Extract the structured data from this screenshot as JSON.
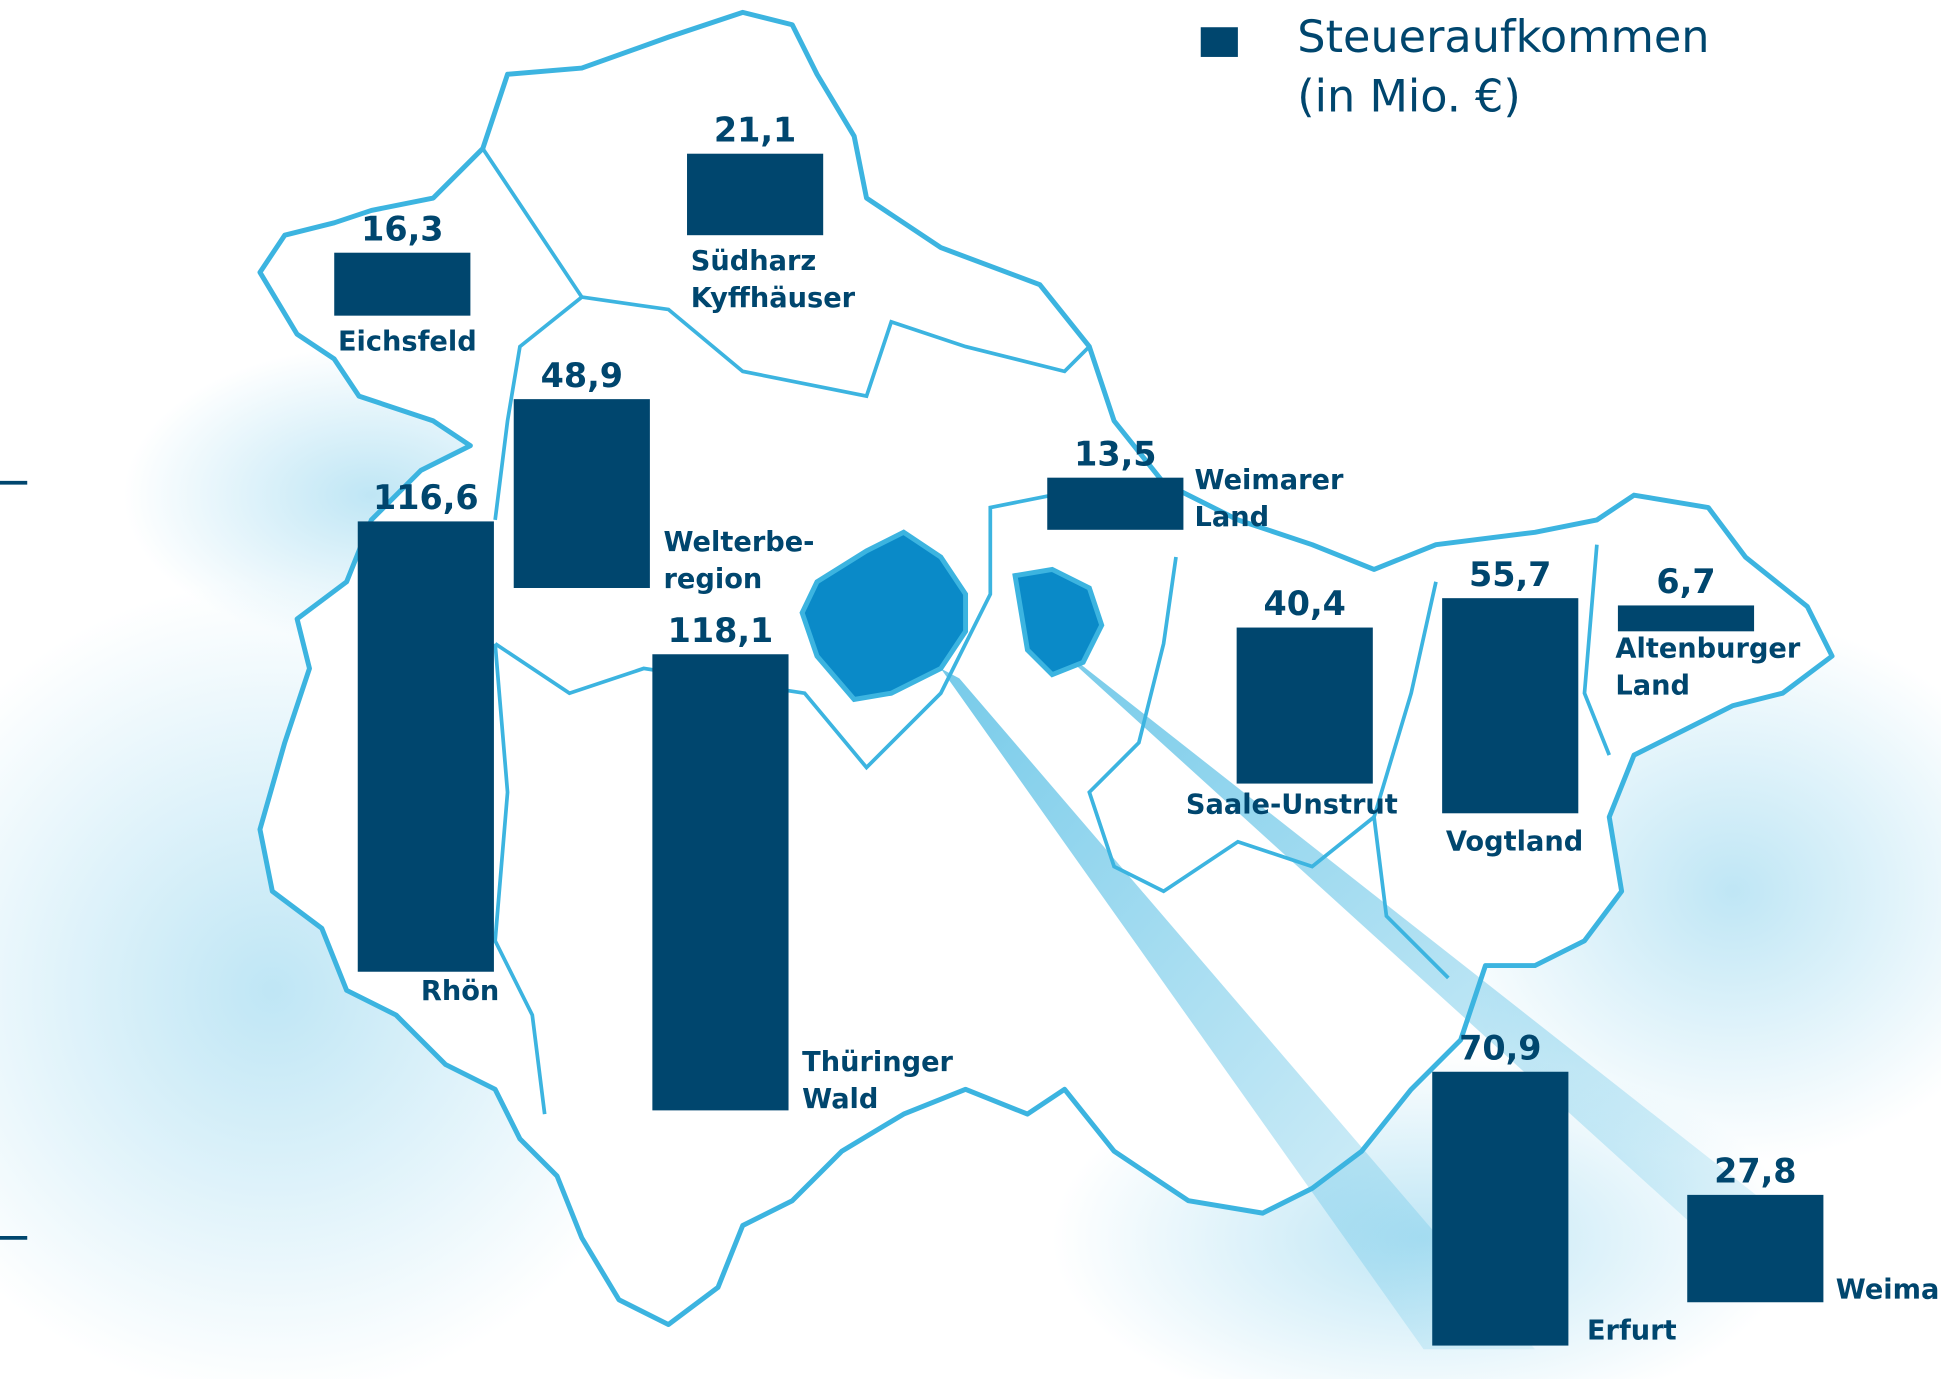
{
  "legend": {
    "lines": [
      "Steueraufkommen",
      "(in Mio. €)"
    ]
  },
  "regions": [
    {
      "name": [
        "Eichsfeld"
      ],
      "value": 16.3,
      "value_label": "16,3"
    },
    {
      "name": [
        "Südharz",
        "Kyffhäuser"
      ],
      "value": 21.1,
      "value_label": "21,1"
    },
    {
      "name": [
        "Welterbe-",
        "region"
      ],
      "value": 48.9,
      "value_label": "48,9"
    },
    {
      "name": [
        "Rhön"
      ],
      "value": 116.6,
      "value_label": "116,6"
    },
    {
      "name": [
        "Thüringer",
        "Wald"
      ],
      "value": 118.1,
      "value_label": "118,1"
    },
    {
      "name": [
        "Weimarer",
        "Land"
      ],
      "value": 13.5,
      "value_label": "13,5"
    },
    {
      "name": [
        "Saale-Unstrut"
      ],
      "value": 40.4,
      "value_label": "40,4"
    },
    {
      "name": [
        "Vogtland"
      ],
      "value": 55.7,
      "value_label": "55,7"
    },
    {
      "name": [
        "Altenburger",
        "Land"
      ],
      "value": 6.7,
      "value_label": "6,7"
    },
    {
      "name": [
        "Erfurt"
      ],
      "value": 70.9,
      "value_label": "70,9"
    },
    {
      "name": [
        "Weimar"
      ],
      "value": 27.8,
      "value_label": "27,8"
    }
  ]
}
